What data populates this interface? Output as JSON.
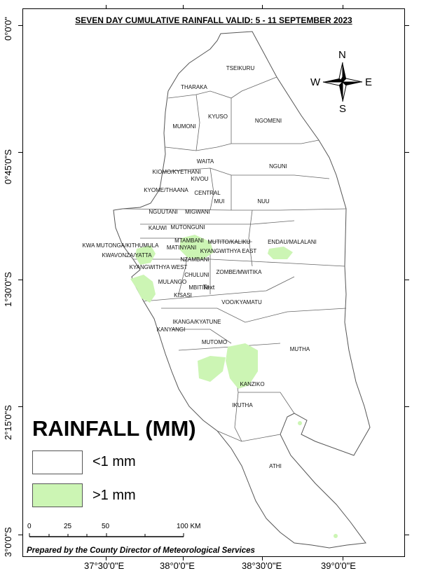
{
  "title": "SEVEN DAY CUMULATIVE RAINFALL VALID: 5 - 11 SEPTEMBER 2023",
  "lat_labels": [
    "0°0'0\"",
    "0°45'0\"S",
    "1°30'0\"S",
    "2°15'0\"S",
    "3°0'0\"S"
  ],
  "lon_labels": [
    "37°30'0\"E",
    "38°0'0\"E",
    "38°30'0\"E",
    "39°0'0\"E"
  ],
  "compass": {
    "n": "N",
    "s": "S",
    "e": "E",
    "w": "W"
  },
  "wards": [
    "TSEIKURU",
    "THARAKA",
    "KYUSO",
    "NGOMENI",
    "MUMONI",
    "WAITA",
    "NGUNI",
    "KIOMO/KYETHANI",
    "KIVOU",
    "KYOME/THAANA",
    "CENTRAL",
    "MUI",
    "NUU",
    "NGUUTANI",
    "MIGWANI",
    "KAUWI",
    "MUTONGUNI",
    "KWA MUTONGA/KITHUMULA",
    "MTAMBANI",
    "MUTITO/KALIKU",
    "ENDAU/MALALANI",
    "MATINYANI",
    "KWAVONZA/YATTA",
    "KYANGWITHYA EAST",
    "NZAMBANI",
    "KYANGWITHYA WEST",
    "CHULUNI",
    "ZOMBE/MWITIKA",
    "MULANGO",
    "MBITINI",
    "Text",
    "KISASI",
    "VOO/KYAMATU",
    "IKANGA/KYATUNE",
    "KANYANGI",
    "MUTOMO",
    "MUTHA",
    "KANZIKO",
    "IKUTHA",
    "ATHI"
  ],
  "legend": {
    "title": "RAINFALL (MM)",
    "items": [
      {
        "label": "<1 mm",
        "color": "#ffffff"
      },
      {
        "label": ">1 mm",
        "color": "#ccf5b4"
      }
    ]
  },
  "scale_bar": {
    "labels": [
      "0",
      "25",
      "50",
      "100 KM"
    ]
  },
  "credit": "Prepared by the County Director of Meteorological Services",
  "colors": {
    "rain": "#ccf5b4",
    "boundary": "#555555"
  }
}
